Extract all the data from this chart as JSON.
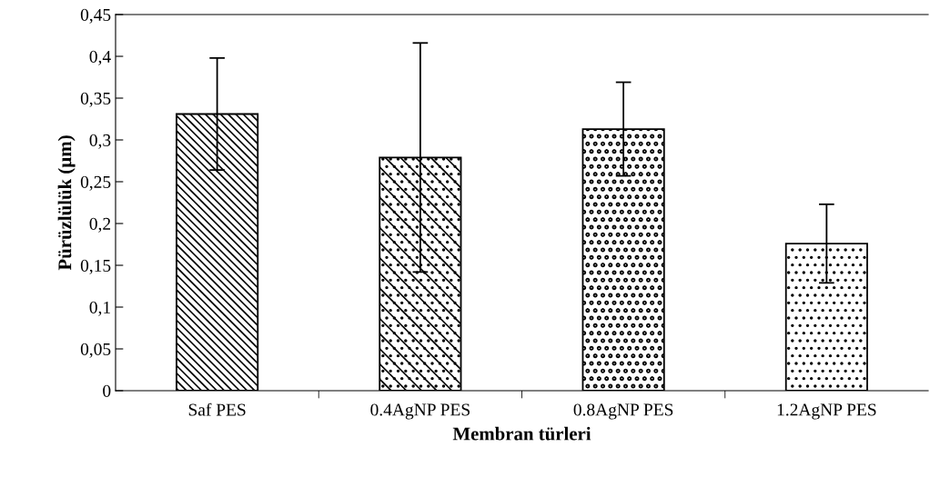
{
  "chart_data": {
    "type": "bar",
    "xlabel": "Membran türleri",
    "ylabel": "Pürüzlülük (µm)",
    "categories": [
      "Saf PES",
      "0.4AgNP PES",
      "0.8AgNP PES",
      "1.2AgNP PES"
    ],
    "values": [
      0.331,
      0.279,
      0.313,
      0.176
    ],
    "errors": [
      0.067,
      0.137,
      0.056,
      0.047
    ],
    "color": "#000000",
    "ylim": [
      0,
      0.45
    ],
    "yticks": [
      0,
      {
        "value": 0.05,
        "label": "0,05"
      },
      {
        "value": 0.1,
        "label": "0,1"
      },
      {
        "value": 0.15,
        "label": "0,15"
      },
      {
        "value": 0.2,
        "label": "0,2"
      },
      {
        "value": 0.25,
        "label": "0,25"
      },
      {
        "value": 0.3,
        "label": "0,3"
      },
      {
        "value": 0.35,
        "label": "0,35"
      },
      {
        "value": 0.4,
        "label": "0,4"
      },
      {
        "value": 0.45,
        "label": "0,45"
      }
    ],
    "grid": false,
    "legend": false
  }
}
